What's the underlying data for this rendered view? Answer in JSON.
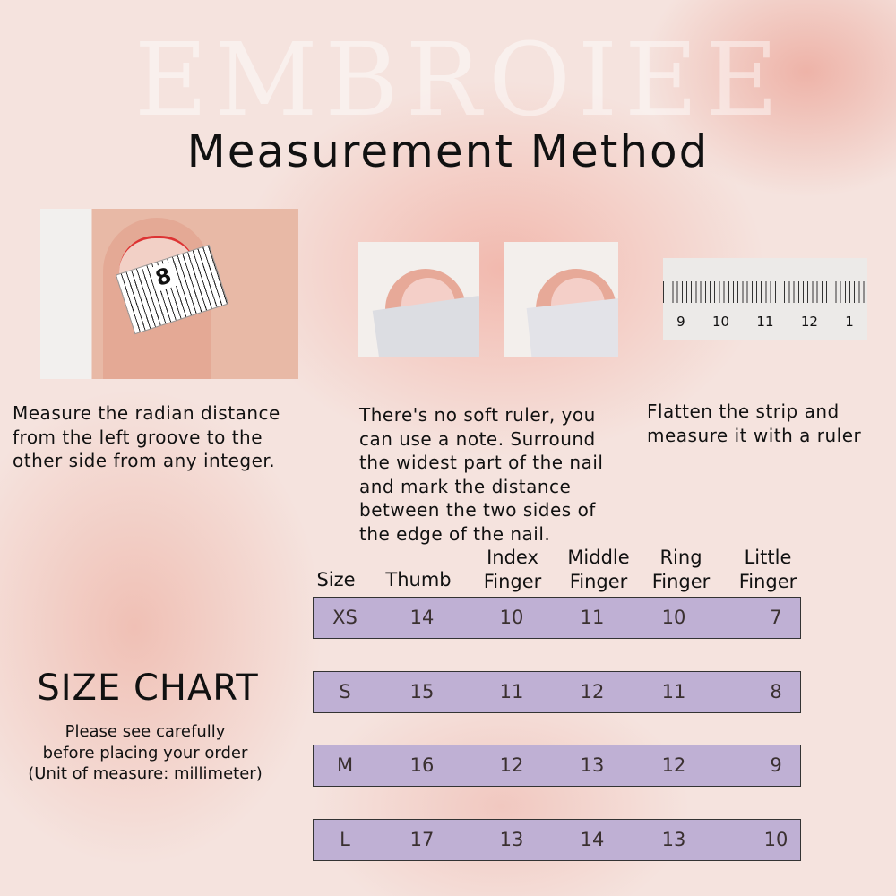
{
  "watermark": "EMBROIEE",
  "title": "Measurement Method",
  "steps": [
    {
      "image": "thumb-with-tape-measure",
      "caption": [
        "Measure the radian distance",
        "from the left groove to the",
        "other side from any integer."
      ]
    },
    {
      "image": "paper-strip-around-nail",
      "caption": [
        "There's no soft ruler, you",
        "can use a note. Surround",
        "the widest part of the nail",
        "and mark the distance",
        "between the two sides of",
        "the edge of the nail."
      ]
    },
    {
      "image": "flattened-strip-on-ruler",
      "caption": [
        "Flatten the strip and",
        "measure it with a ruler"
      ]
    }
  ],
  "ruler_labels": [
    "9",
    "10",
    "11",
    "12",
    "1"
  ],
  "tape_label": "8",
  "size_chart": {
    "title": "SIZE CHART",
    "subtitle": [
      "Please see carefully",
      "before placing your order",
      "(Unit of measure: millimeter)"
    ],
    "headers": [
      [
        "Size"
      ],
      [
        "Thumb"
      ],
      [
        "Index",
        "Finger"
      ],
      [
        "Middle",
        "Finger"
      ],
      [
        "Ring",
        "Finger"
      ],
      [
        "Little",
        "Finger"
      ]
    ],
    "rows": [
      [
        "XS",
        "14",
        "10",
        "11",
        "10",
        "7"
      ],
      [
        "S",
        "15",
        "11",
        "12",
        "11",
        "8"
      ],
      [
        "M",
        "16",
        "12",
        "13",
        "12",
        "9"
      ],
      [
        "L",
        "17",
        "13",
        "14",
        "13",
        "10"
      ]
    ],
    "row_color": "#bfb0d4"
  }
}
